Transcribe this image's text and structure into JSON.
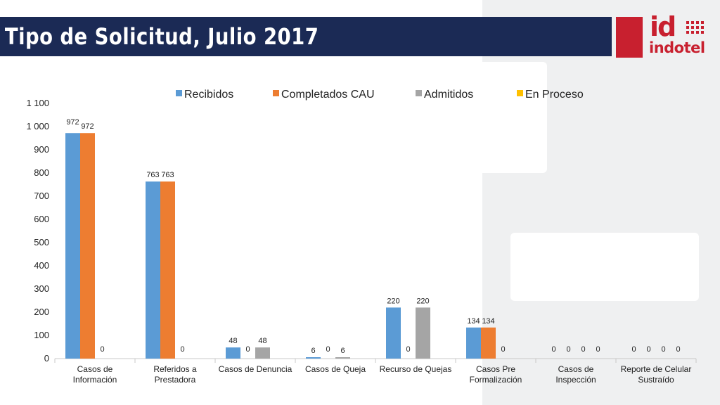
{
  "title": "Tipo de Solicitud, Julio 2017",
  "logo": {
    "mark": "id",
    "name": "indotel",
    "brand_color": "#c8202f"
  },
  "colors": {
    "title_bar": "#1b2a55",
    "panel": "#eff0f1"
  },
  "chart_data": {
    "type": "bar",
    "title": "",
    "xlabel": "",
    "ylabel": "",
    "ylim": [
      0,
      1100
    ],
    "yticks": [
      0,
      100,
      200,
      300,
      400,
      500,
      600,
      700,
      800,
      900,
      1000,
      1100
    ],
    "ytick_labels": [
      "0",
      "100",
      "200",
      "300",
      "400",
      "500",
      "600",
      "700",
      "800",
      "900",
      "1 000",
      "1 100"
    ],
    "grid": false,
    "legend_position": "top",
    "categories": [
      [
        "Casos de",
        "Información"
      ],
      [
        "Referidos a",
        "Prestadora"
      ],
      [
        "Casos de Denuncia"
      ],
      [
        "Casos de Queja"
      ],
      [
        "Recurso de Quejas"
      ],
      [
        "Casos Pre",
        "Formalización"
      ],
      [
        "Casos de",
        "Inspección"
      ],
      [
        "Reporte de Celular",
        "Sustraído"
      ]
    ],
    "series": [
      {
        "name": "Recibidos",
        "color": "#5b9bd5",
        "values": [
          972,
          763,
          48,
          6,
          220,
          134,
          0,
          0
        ]
      },
      {
        "name": "Completados CAU",
        "color": "#ed7d31",
        "values": [
          972,
          763,
          0,
          0,
          0,
          134,
          0,
          0
        ]
      },
      {
        "name": "Admitidos",
        "color": "#a5a5a5",
        "values": [
          0,
          0,
          48,
          6,
          220,
          0,
          0,
          0
        ]
      },
      {
        "name": "En Proceso",
        "color": "#ffc000",
        "values": [
          0,
          0,
          0,
          0,
          0,
          0,
          0,
          0
        ]
      }
    ]
  }
}
